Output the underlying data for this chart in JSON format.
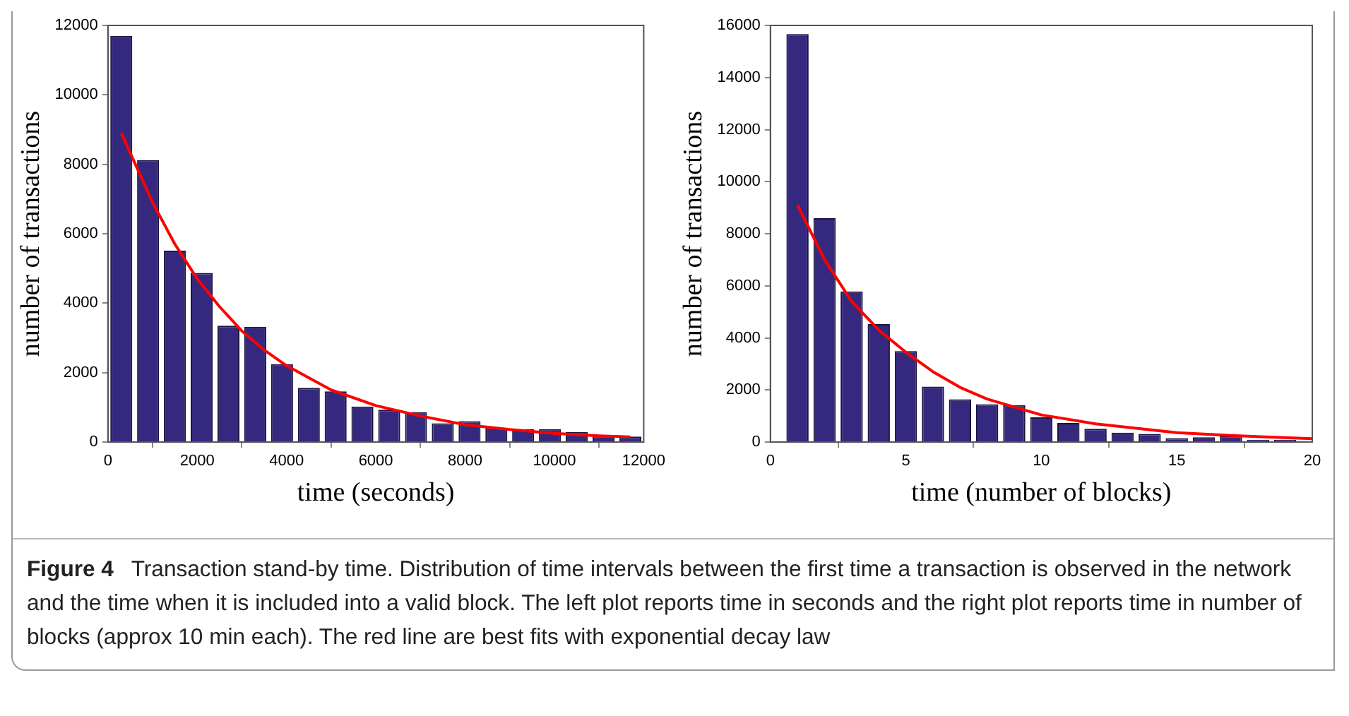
{
  "chart_data": [
    {
      "type": "histogram",
      "xlabel": "time (seconds)",
      "ylabel": "number of transactions",
      "bins": [
        0,
        600,
        1200,
        1800,
        2400,
        3000,
        3600,
        4200,
        4800,
        5400,
        6000,
        6600,
        7200,
        7800,
        8400,
        9000,
        9600,
        10200,
        10800,
        11400,
        12000
      ],
      "series": [
        {
          "type": "histogram",
          "color": "#35297f",
          "values": [
            11700,
            8120,
            5510,
            4870,
            3350,
            3320,
            2240,
            1560,
            1460,
            1020,
            930,
            860,
            540,
            600,
            410,
            370,
            370,
            290,
            180,
            160
          ]
        },
        {
          "type": "line",
          "color": "#ff0000",
          "x": [
            300,
            1000,
            1500,
            2000,
            2500,
            3000,
            3500,
            4000,
            5000,
            6000,
            7000,
            8000,
            9000,
            10000,
            11000,
            11700
          ],
          "values": [
            8900,
            6900,
            5700,
            4700,
            3900,
            3200,
            2650,
            2200,
            1500,
            1050,
            750,
            500,
            360,
            250,
            180,
            150
          ]
        }
      ],
      "xlim": [
        0,
        12000
      ],
      "xticks": [
        0,
        2000,
        4000,
        6000,
        8000,
        10000,
        12000
      ],
      "ylim": [
        0,
        12000
      ],
      "yticks": [
        0,
        2000,
        4000,
        6000,
        8000,
        10000,
        12000
      ],
      "grid": false,
      "legend": false,
      "marker": "none"
    },
    {
      "type": "histogram",
      "xlabel": "time (number of blocks)",
      "ylabel": "number of transactions",
      "bins": [
        0.5,
        1.5,
        2.5,
        3.5,
        4.5,
        5.5,
        6.5,
        7.5,
        8.5,
        9.5,
        10.5,
        11.5,
        12.5,
        13.5,
        14.5,
        15.5,
        16.5,
        17.5,
        18.5,
        19.5
      ],
      "series": [
        {
          "type": "histogram",
          "color": "#35297f",
          "values": [
            15670,
            8600,
            5780,
            4530,
            3490,
            2130,
            1640,
            1450,
            1420,
            950,
            730,
            510,
            360,
            310,
            150,
            180,
            240,
            90,
            90
          ]
        },
        {
          "type": "line",
          "color": "#ff0000",
          "x": [
            1,
            2,
            3,
            4,
            5,
            6,
            7,
            8,
            10,
            12,
            15,
            17,
            20
          ],
          "values": [
            9100,
            7000,
            5400,
            4300,
            3450,
            2700,
            2100,
            1650,
            1040,
            700,
            360,
            250,
            130
          ]
        }
      ],
      "xlim": [
        0,
        20
      ],
      "xticks": [
        0,
        5,
        10,
        15,
        20
      ],
      "ylim": [
        0,
        16000
      ],
      "yticks": [
        0,
        2000,
        4000,
        6000,
        8000,
        10000,
        12000,
        14000,
        16000
      ],
      "grid": false,
      "legend": false,
      "marker": "none",
      "annotations": [
        "Figure 4",
        "Transaction stand-by time. Distribution of time intervals between the first time a transaction is observed in the network and the time when it is included into a valid block. The left plot reports time in seconds and the right plot reports time in number of blocks (approx 10 min each). The red line are best fits with exponential decay law"
      ]
    }
  ]
}
